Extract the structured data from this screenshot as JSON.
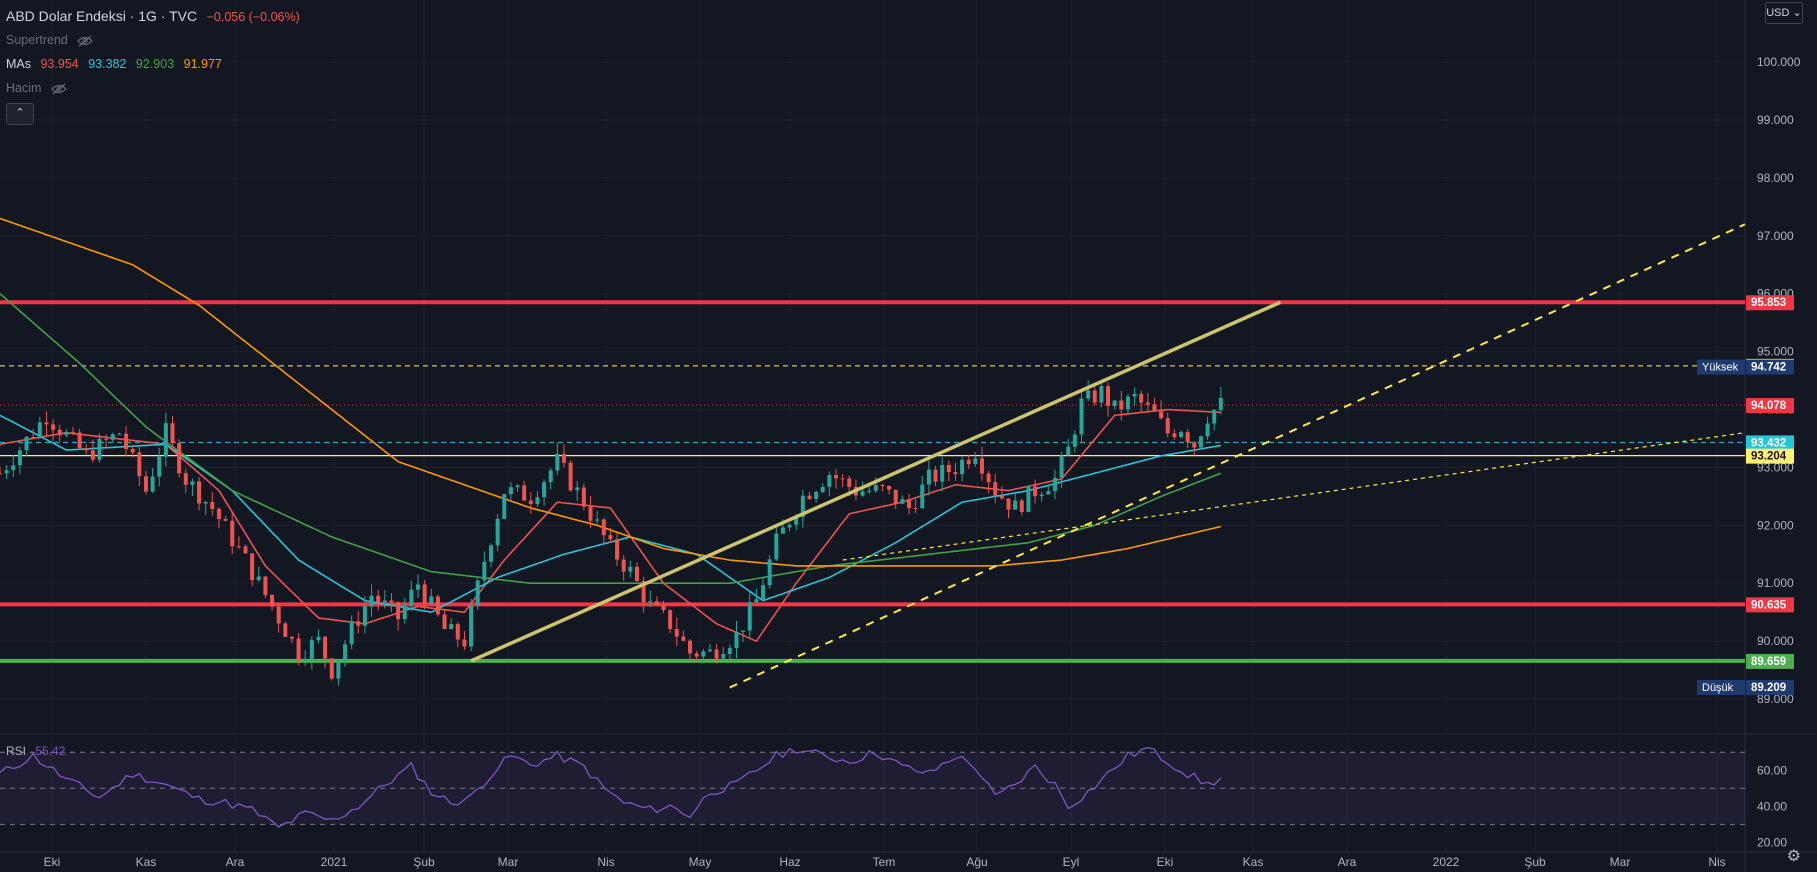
{
  "header": {
    "title": "ABD Dolar Endeksi · 1G · TVC",
    "change": "−0.056 (−0.06%)",
    "indicators": [
      {
        "label": "Supertrend"
      },
      {
        "label": "MAs",
        "values": [
          "93.954",
          "93.382",
          "92.903",
          "91.977"
        ],
        "colors": [
          "#ef5350",
          "#26c6da",
          "#43a047",
          "#ff9800"
        ]
      },
      {
        "label": "Hacim"
      }
    ],
    "collapse_icon": "chevron-up-icon"
  },
  "currency_button": "USD",
  "rsi": {
    "label": "RSI",
    "value": "55.42"
  },
  "settings_icon": "gear-icon",
  "chart_data": {
    "type": "candlestick",
    "title": "ABD Dolar Endeksi",
    "x_ticks": [
      "Eki",
      "Kas",
      "Ara",
      "2021",
      "Şub",
      "Mar",
      "Nis",
      "May",
      "Haz",
      "Tem",
      "Ağu",
      "Eyl",
      "Eki",
      "Kas",
      "Ara",
      "2022",
      "Şub",
      "Mar",
      "Nis"
    ],
    "y_ticks": [
      "100.000",
      "99.000",
      "98.000",
      "97.000",
      "96.000",
      "95.000",
      "94.000",
      "93.000",
      "92.000",
      "91.000",
      "90.000",
      "89.000"
    ],
    "ylim": [
      88.5,
      100.9
    ],
    "price_path": [
      [
        0,
        92.9
      ],
      [
        7,
        93.9
      ],
      [
        13,
        93.2
      ],
      [
        18,
        93.6
      ],
      [
        22,
        92.6
      ],
      [
        25,
        93.6
      ],
      [
        28,
        92.8
      ],
      [
        32,
        92.3
      ],
      [
        37,
        91.4
      ],
      [
        41,
        90.6
      ],
      [
        45,
        89.8
      ],
      [
        48,
        90.0
      ],
      [
        50,
        89.5
      ],
      [
        53,
        90.2
      ],
      [
        56,
        90.8
      ],
      [
        60,
        90.4
      ],
      [
        63,
        91.0
      ],
      [
        67,
        90.2
      ],
      [
        70,
        90.0
      ],
      [
        73,
        91.4
      ],
      [
        76,
        92.6
      ],
      [
        80,
        92.5
      ],
      [
        84,
        93.1
      ],
      [
        88,
        92.4
      ],
      [
        92,
        91.6
      ],
      [
        95,
        91.2
      ],
      [
        98,
        90.6
      ],
      [
        101,
        90.3
      ],
      [
        104,
        89.8
      ],
      [
        107,
        89.8
      ],
      [
        111,
        90.1
      ],
      [
        114,
        90.7
      ],
      [
        117,
        91.7
      ],
      [
        121,
        92.5
      ],
      [
        125,
        92.9
      ],
      [
        129,
        92.6
      ],
      [
        133,
        92.6
      ],
      [
        137,
        92.3
      ],
      [
        140,
        92.8
      ],
      [
        144,
        93.0
      ],
      [
        147,
        93.3
      ],
      [
        150,
        92.6
      ],
      [
        153,
        92.3
      ],
      [
        156,
        92.6
      ],
      [
        159,
        92.8
      ],
      [
        161,
        93.3
      ],
      [
        163,
        94.1
      ],
      [
        166,
        94.3
      ],
      [
        168,
        94.0
      ],
      [
        171,
        94.2
      ],
      [
        174,
        93.9
      ],
      [
        176,
        93.6
      ],
      [
        178,
        93.7
      ],
      [
        180,
        93.4
      ],
      [
        182,
        93.9
      ],
      [
        184,
        94.08
      ]
    ],
    "ma_series": [
      {
        "name": "MA 93.954",
        "color": "#ef5350",
        "points": [
          [
            0,
            93.4
          ],
          [
            10,
            93.6
          ],
          [
            25,
            93.4
          ],
          [
            33,
            92.6
          ],
          [
            40,
            91.3
          ],
          [
            48,
            90.4
          ],
          [
            55,
            90.3
          ],
          [
            63,
            90.6
          ],
          [
            70,
            90.5
          ],
          [
            76,
            91.4
          ],
          [
            84,
            92.4
          ],
          [
            92,
            92.3
          ],
          [
            100,
            91.0
          ],
          [
            108,
            90.3
          ],
          [
            114,
            90.0
          ],
          [
            120,
            91.0
          ],
          [
            128,
            92.2
          ],
          [
            136,
            92.4
          ],
          [
            144,
            92.7
          ],
          [
            152,
            92.6
          ],
          [
            160,
            92.8
          ],
          [
            168,
            93.9
          ],
          [
            176,
            94.0
          ],
          [
            184,
            93.95
          ]
        ]
      },
      {
        "name": "MA 93.382",
        "color": "#26c6da",
        "points": [
          [
            0,
            93.9
          ],
          [
            10,
            93.3
          ],
          [
            25,
            93.4
          ],
          [
            35,
            92.6
          ],
          [
            45,
            91.4
          ],
          [
            55,
            90.7
          ],
          [
            65,
            90.5
          ],
          [
            75,
            91.1
          ],
          [
            85,
            91.5
          ],
          [
            95,
            91.8
          ],
          [
            105,
            91.5
          ],
          [
            115,
            90.7
          ],
          [
            125,
            91.1
          ],
          [
            135,
            91.7
          ],
          [
            145,
            92.4
          ],
          [
            155,
            92.6
          ],
          [
            165,
            92.9
          ],
          [
            175,
            93.2
          ],
          [
            184,
            93.38
          ]
        ]
      },
      {
        "name": "MA 92.903",
        "color": "#43a047",
        "points": [
          [
            0,
            96.0
          ],
          [
            12,
            94.8
          ],
          [
            22,
            93.7
          ],
          [
            35,
            92.6
          ],
          [
            50,
            91.8
          ],
          [
            65,
            91.2
          ],
          [
            80,
            91.0
          ],
          [
            95,
            91.0
          ],
          [
            110,
            91.0
          ],
          [
            125,
            91.3
          ],
          [
            140,
            91.5
          ],
          [
            155,
            91.7
          ],
          [
            165,
            92.0
          ],
          [
            175,
            92.5
          ],
          [
            184,
            92.9
          ]
        ]
      },
      {
        "name": "MA 91.977",
        "color": "#ff9800",
        "points": [
          [
            0,
            97.3
          ],
          [
            10,
            96.9
          ],
          [
            20,
            96.5
          ],
          [
            30,
            95.8
          ],
          [
            40,
            94.9
          ],
          [
            50,
            94.0
          ],
          [
            60,
            93.1
          ],
          [
            70,
            92.7
          ],
          [
            80,
            92.3
          ],
          [
            90,
            92.0
          ],
          [
            100,
            91.6
          ],
          [
            110,
            91.4
          ],
          [
            120,
            91.3
          ],
          [
            130,
            91.3
          ],
          [
            140,
            91.3
          ],
          [
            150,
            91.3
          ],
          [
            160,
            91.4
          ],
          [
            170,
            91.6
          ],
          [
            184,
            91.98
          ]
        ]
      }
    ],
    "horizontal_levels": [
      {
        "price": 95.853,
        "label": "95.853",
        "color": "#f23645",
        "style": "solid"
      },
      {
        "price": 94.754,
        "label": "94.754",
        "color": "#fff176",
        "style": "dashed"
      },
      {
        "price": 94.742,
        "label": "94.742",
        "tag": "Yüksek",
        "color": "#1e3a6e",
        "style": "none"
      },
      {
        "price": 94.078,
        "label": "94.078",
        "color": "#f23645",
        "style": "dotted"
      },
      {
        "price": 93.432,
        "label": "93.432",
        "color": "#26c6da",
        "style": "dashed"
      },
      {
        "price": 93.204,
        "label": "93.204",
        "color": "#fff176",
        "style": "solid"
      },
      {
        "price": 90.635,
        "label": "90.635",
        "color": "#f23645",
        "style": "solid"
      },
      {
        "price": 89.659,
        "label": "89.659",
        "color": "#4caf50",
        "style": "solid"
      },
      {
        "price": 89.209,
        "label": "89.209",
        "tag": "Düşük",
        "color": "#1e3a6e",
        "style": "none"
      }
    ],
    "trend_lines": [
      {
        "from": [
          71,
          89.659
        ],
        "to": [
          193,
          95.853
        ],
        "color": "#cdc56b",
        "style": "solid"
      },
      {
        "from": [
          110,
          89.2
        ],
        "to": [
          263,
          97.2
        ],
        "color": "#ffeb3b",
        "style": "dashed"
      },
      {
        "from": [
          127,
          91.4
        ],
        "to": [
          263,
          93.6
        ],
        "color": "#ffeb3b",
        "style": "dashed-thin"
      }
    ],
    "rsi": {
      "y_ticks": [
        "60.00",
        "40.00",
        "20.00"
      ],
      "ylim": [
        18,
        74
      ],
      "band": [
        30,
        70
      ],
      "color": "#7e57c2",
      "points": [
        [
          0,
          58
        ],
        [
          5,
          68
        ],
        [
          10,
          55
        ],
        [
          15,
          45
        ],
        [
          20,
          58
        ],
        [
          25,
          52
        ],
        [
          30,
          44
        ],
        [
          34,
          42
        ],
        [
          38,
          38
        ],
        [
          42,
          28
        ],
        [
          46,
          36
        ],
        [
          50,
          32
        ],
        [
          54,
          40
        ],
        [
          58,
          52
        ],
        [
          62,
          62
        ],
        [
          65,
          48
        ],
        [
          68,
          42
        ],
        [
          71,
          45
        ],
        [
          74,
          58
        ],
        [
          77,
          68
        ],
        [
          80,
          63
        ],
        [
          84,
          68
        ],
        [
          88,
          62
        ],
        [
          91,
          50
        ],
        [
          94,
          42
        ],
        [
          98,
          38
        ],
        [
          101,
          40
        ],
        [
          104,
          35
        ],
        [
          107,
          48
        ],
        [
          111,
          52
        ],
        [
          114,
          60
        ],
        [
          117,
          68
        ],
        [
          120,
          72
        ],
        [
          124,
          68
        ],
        [
          128,
          65
        ],
        [
          132,
          70
        ],
        [
          136,
          62
        ],
        [
          140,
          58
        ],
        [
          144,
          68
        ],
        [
          147,
          62
        ],
        [
          150,
          45
        ],
        [
          153,
          52
        ],
        [
          156,
          62
        ],
        [
          159,
          52
        ],
        [
          161,
          40
        ],
        [
          164,
          48
        ],
        [
          167,
          58
        ],
        [
          170,
          68
        ],
        [
          173,
          72
        ],
        [
          176,
          65
        ],
        [
          179,
          58
        ],
        [
          182,
          52
        ],
        [
          184,
          55.42
        ]
      ]
    }
  }
}
